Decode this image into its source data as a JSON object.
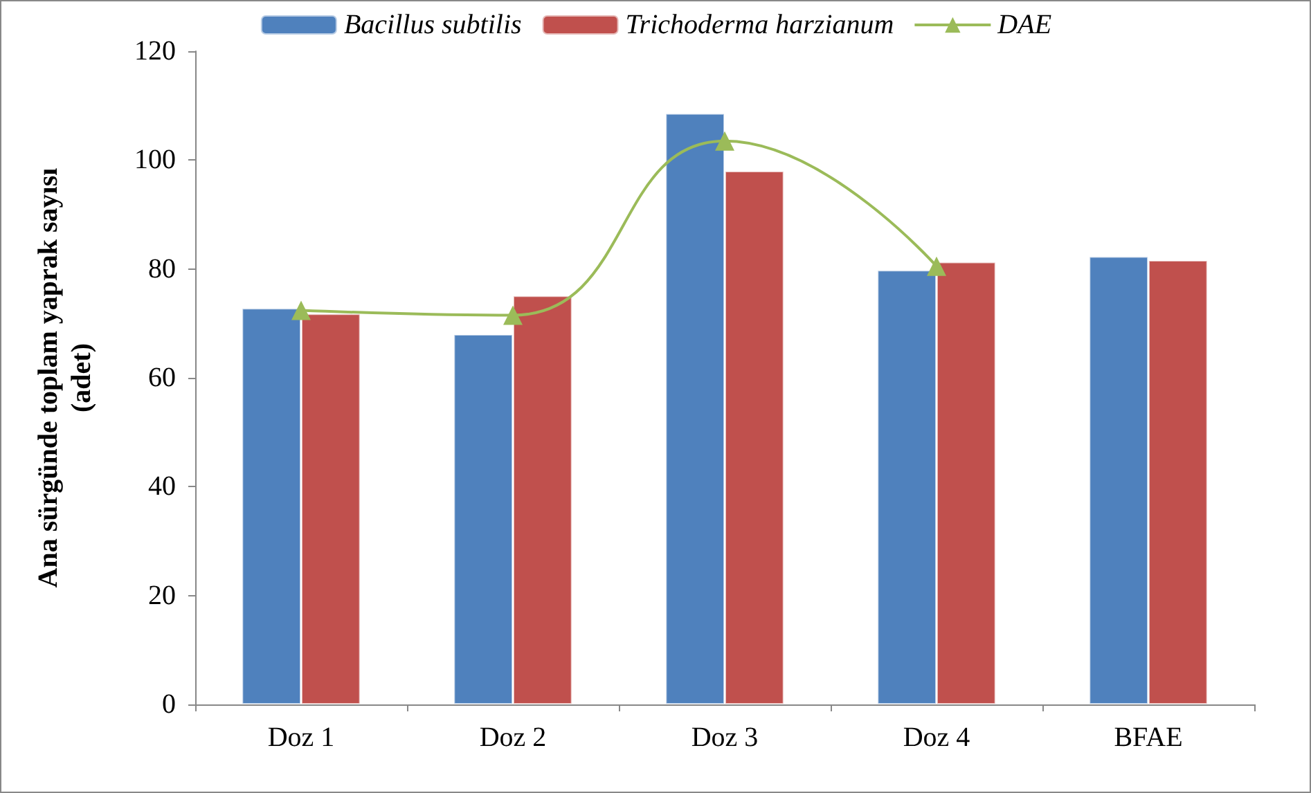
{
  "chart_data": {
    "type": "bar",
    "ylabel": "Ana sürgünde toplam yaprak sayısı\n(adet)",
    "categories": [
      "Doz 1",
      "Doz 2",
      "Doz 3",
      "Doz 4",
      "BFAE"
    ],
    "series": [
      {
        "name": "Bacillus subtilis",
        "color": "#4f81bd",
        "values": [
          72.8,
          68.0,
          108.6,
          79.8,
          82.3
        ]
      },
      {
        "name": "Trichoderma harzianum",
        "color": "#c0504d",
        "values": [
          71.8,
          75.1,
          98.0,
          81.3,
          81.6
        ]
      },
      {
        "name": "DAE",
        "type": "line",
        "color": "#9bbb59",
        "marker": "triangle",
        "values": [
          72.4,
          71.5,
          103.5,
          80.5,
          null
        ]
      }
    ],
    "ylim": [
      0,
      120
    ],
    "yticks": [
      0,
      20,
      40,
      60,
      80,
      100,
      120
    ],
    "grid": false,
    "legend": "top"
  }
}
